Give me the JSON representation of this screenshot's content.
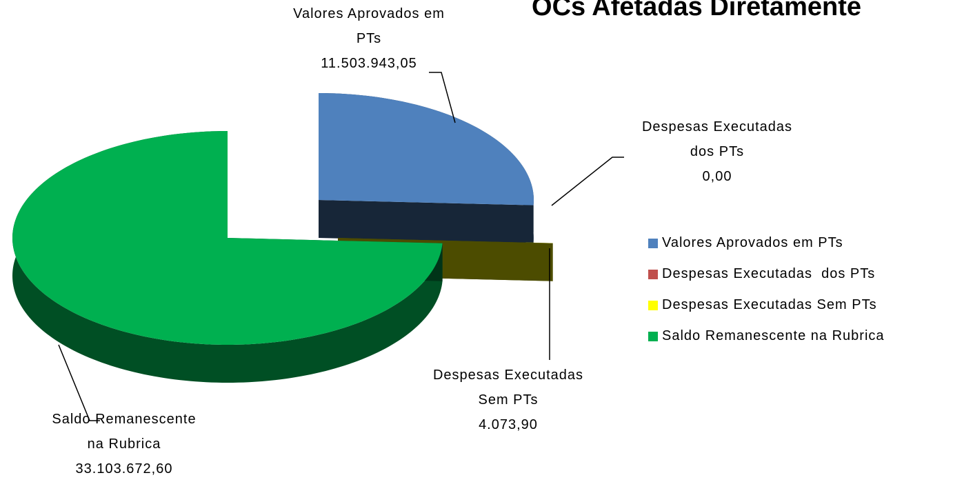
{
  "chart_data": {
    "type": "pie3d",
    "title": "OCs Afetadas Diretamente",
    "categories": [
      "Valores Aprovados em PTs",
      "Despesas Executadas  dos PTs",
      "Despesas Executadas Sem PTs",
      "Saldo Remanescente na Rubrica"
    ],
    "values": [
      11503943.05,
      0,
      4073.9,
      33103672.6
    ],
    "value_labels": [
      "11.503.943,05",
      "0,00",
      "4.073,90",
      "33.103.672,60"
    ],
    "colors": [
      "#4f81bd",
      "#c0504d",
      "#ffff00",
      "#00b050"
    ],
    "legend": "right"
  }
}
